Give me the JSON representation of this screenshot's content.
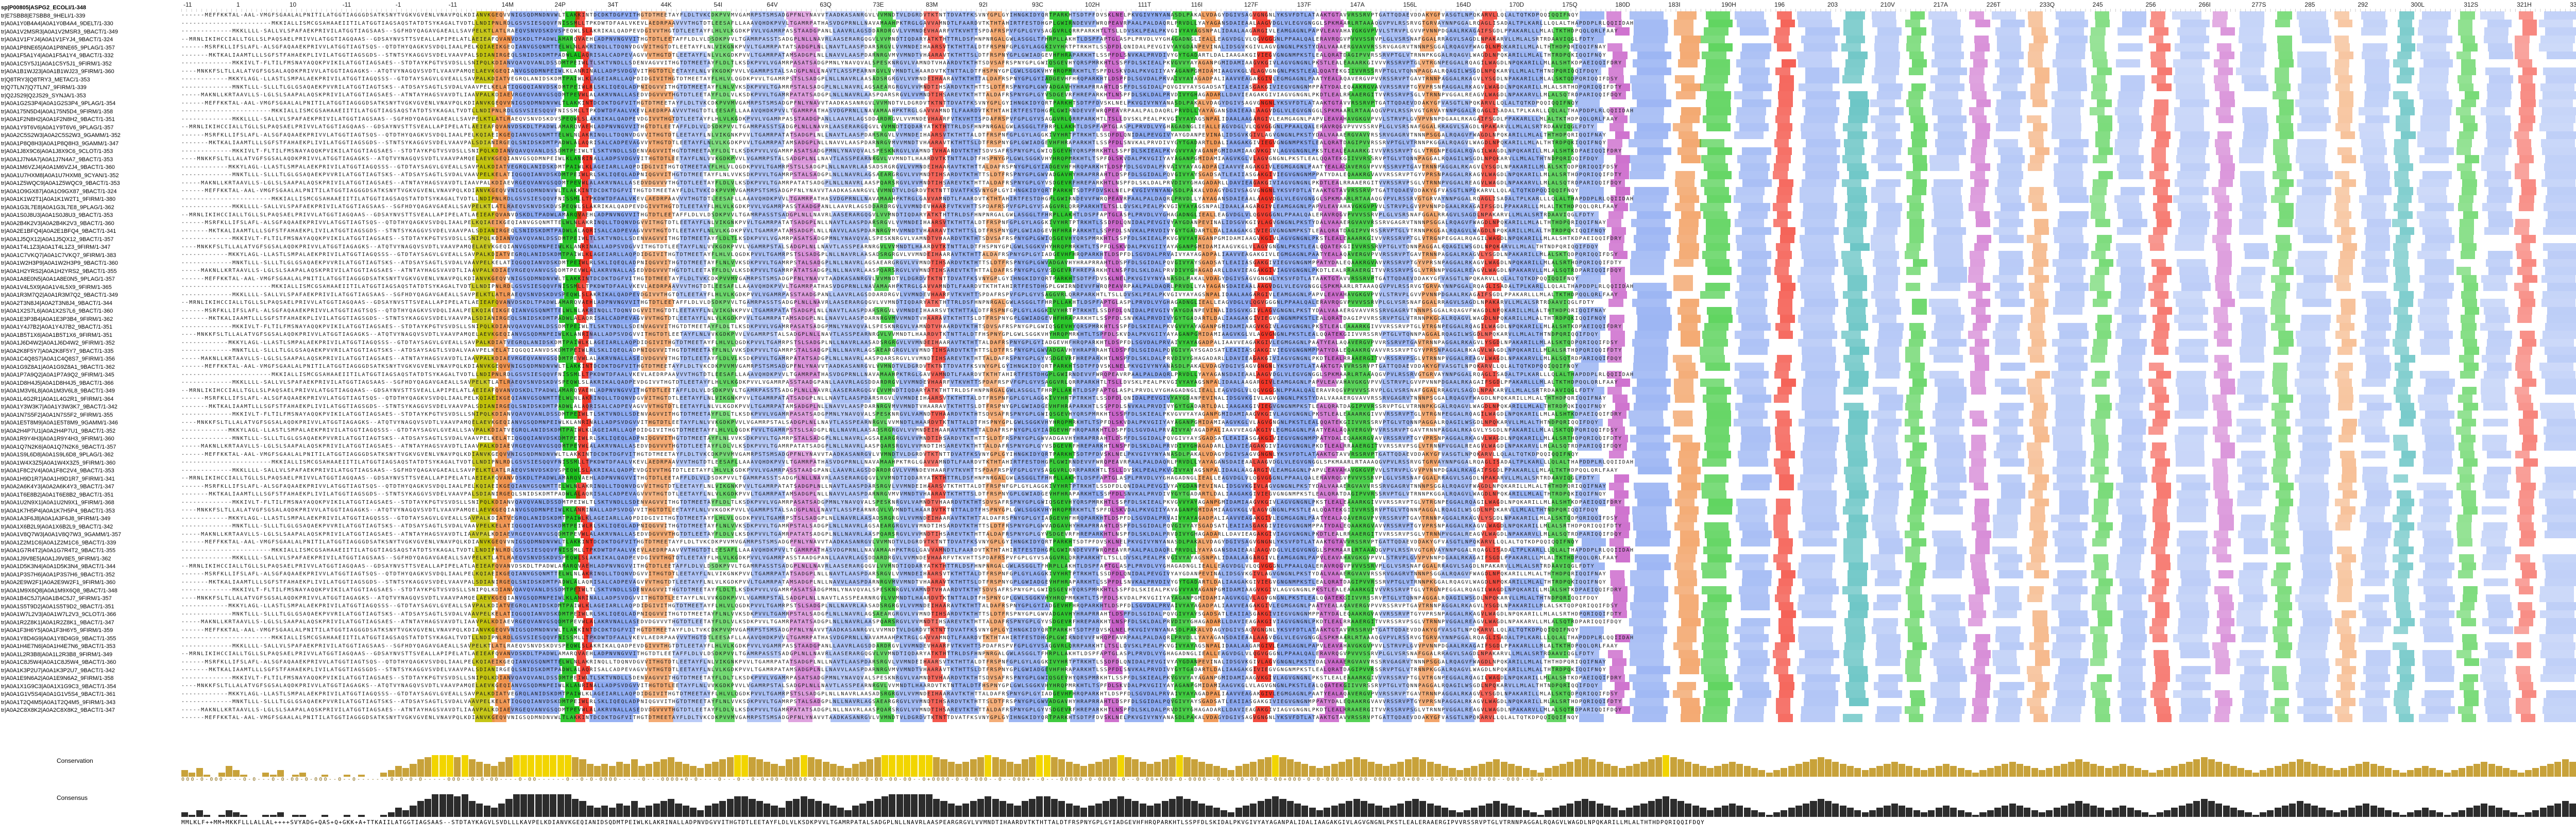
{
  "ruler": {
    "ticks": [
      "-11",
      "1",
      "10",
      "-11",
      "-1",
      "-11",
      "14M",
      "24P",
      "34T",
      "44K",
      "54I",
      "64V",
      "63Q",
      "73E",
      "83M",
      "92I",
      "93C",
      "102H",
      "111T",
      "116I",
      "127F",
      "137F",
      "147A",
      "156L",
      "164D",
      "170D",
      "175Q",
      "180D",
      "183I",
      "190H",
      "196",
      "203",
      "210V",
      "217A",
      "226T",
      "233Q",
      "245",
      "256",
      "266I",
      "277S",
      "285",
      "292",
      "300L",
      "312S",
      "321H",
      "330"
    ]
  },
  "colors": {
    "hydrophobic_blue": "#80a0f0",
    "polar_green": "#15c015",
    "glycine_orange": "#f09048",
    "proline_yellow": "#c0c000",
    "acidic_magenta": "#c048c0",
    "basic_red": "#f01505",
    "aromatic_cyan": "#15a4a4",
    "conservation_bar": "#c8a23a",
    "consensus_bar": "#2c2c2c"
  },
  "sequences": [
    {
      "name": "sp|P00805|ASPG2_ECOLI/1-348",
      "ref": true
    },
    {
      "name": "tr|E7SBB8|E7SBB8_9HELI/1-339"
    },
    {
      "name": "tr|A0A1Y0B4A4|A0A1Y0B4A4_9DELT/1-330"
    },
    {
      "name": "tr|A0A1V2MSR3|A0A1V2MSR3_9BACT/1-349"
    },
    {
      "name": "tr|A0A1V1FYJ4|A0A1V1FYJ4_9BACT/1-324"
    },
    {
      "name": "tr|A0A1P8NE65|A0A1P8NE65_9PLAG/1-357"
    },
    {
      "name": "tr|A0A1F5A1Y4|A0A1F5A1Y4_9BACT/1-332"
    },
    {
      "name": "tr|A0A1C5Y5J1|A0A1C5Y5J1_9FIRM/1-352"
    },
    {
      "name": "tr|A0A1B1WJ23|A0A1B1WJ23_9FIRM/1-360"
    },
    {
      "name": "tr|Q8TRY3|Q8TRY3_METAC/1-353"
    },
    {
      "name": "tr|Q7TLN7|Q7TLN7_9FIRM/1-339"
    },
    {
      "name": "tr|Q2JS29|Q2JS29_SYNJA/1-353"
    },
    {
      "name": "tr|A0A1G2S3P4|A0A1G2S3P4_9PLAG/1-354"
    },
    {
      "name": "tr|A0A175N5D4|A0A175N5D4_9FIRM/1-358"
    },
    {
      "name": "tr|A0A1F2N8H2|A0A1F2N8H2_9BACT/1-351"
    },
    {
      "name": "tr|A0A1Y9T6V6|A0A1Y9T6V6_9PLAG/1-357"
    },
    {
      "name": "tr|A0A2C5S2W3|A0A2C5S2W3_9GAMM/1-352"
    },
    {
      "name": "tr|A0A1P8Q8H3|A0A1P8Q8H3_9GAMM/1-347"
    },
    {
      "name": "tr|A0A1J8X9C6|A0A1J8X9C6_9CLOT/1-353"
    },
    {
      "name": "tr|A0A1J7N4A7|A0A1J7N4A7_9BACT/1-353"
    },
    {
      "name": "tr|A0A1M6VZJ4|A0A1M6VZJ4_9BACT/1-360"
    },
    {
      "name": "tr|A0A1U7HXM8|A0A1U7HXM8_9CYAN/1-352"
    },
    {
      "name": "tr|A0A1Z5WQC9|A0A1Z5WQC9_9BACT/1-353"
    },
    {
      "name": "tr|A0A1O9GX87|A0A1O9GX87_9BACT/1-324"
    },
    {
      "name": "tr|A0A1K1W2T1|A0A1K1W2T1_9FIRM/1-380"
    },
    {
      "name": "tr|A0A1G3L7E8|A0A1G3L7E8_9PLAG/1-362"
    },
    {
      "name": "tr|A0A1S0J8U3|A0A1S0J8U3_9BACT/1-353"
    },
    {
      "name": "tr|A0A2B4K2V3|A0A2B4K2V3_9BACT/1-360"
    },
    {
      "name": "tr|A0A2E1BFQ4|A0A2E1BFQ4_9BACT/1-341"
    },
    {
      "name": "tr|A0A1J5QX12|A0A1J5QX12_9BACT/1-357"
    },
    {
      "name": "tr|A0A1T4L1Z3|A0A1T4L1Z3_9FIRM/1-347"
    },
    {
      "name": "tr|A0A1C7VKQ7|A0A1C7VKQ7_9FIRM/1-383"
    },
    {
      "name": "tr|A0A1W2H3P9|A0A1W2H3P9_9BACT/1-360"
    },
    {
      "name": "tr|A0A1H2YRS2|A0A1H2YRS2_9BACT/1-355"
    },
    {
      "name": "tr|A0A1A8E0N5|A0A1A8E0N5_9PLAG/1-357"
    },
    {
      "name": "tr|A0A1V4L5X9|A0A1V4L5X9_9FIRM/1-365"
    },
    {
      "name": "tr|A0A1R3M7Q2|A0A1R3M7Q2_9BACT/1-349"
    },
    {
      "name": "tr|A0A2T3N8J4|A0A2T3N8J4_9BACT/1-344"
    },
    {
      "name": "tr|A0A1X2S7L6|A0A1X2S7L6_9BACT/1-360"
    },
    {
      "name": "tr|A0A1E3P3B4|A0A1E3P3B4_9FIRM/1-362"
    },
    {
      "name": "tr|A0A1Y4J7B2|A0A1Y4J7B2_9BACT/1-351"
    },
    {
      "name": "tr|A0A1B5T1X6|A0A1B5T1X6_9FIRM/1-351"
    },
    {
      "name": "tr|A0A1J6D4W2|A0A1J6D4W2_9FIRM/1-352"
    },
    {
      "name": "tr|A0A2K8F5Y7|A0A2K8F5Y7_9BACT/1-335"
    },
    {
      "name": "tr|A0A1C4Q8S7|A0A1C4Q8S7_9FIRM/1-356"
    },
    {
      "name": "tr|A0A1G9Z8A1|A0A1G9Z8A1_9BACT/1-362"
    },
    {
      "name": "tr|A0A1P7A9Q2|A0A1P7A9Q2_9FIRM/1-345"
    },
    {
      "name": "tr|A0A1D8H4J5|A0A1D8H4J5_9BACT/1-366"
    },
    {
      "name": "tr|A0A1M3V6L8|A0A1M3V6L8_9BACT/1-349"
    },
    {
      "name": "tr|A0A1L4G2R1|A0A1L4G2R1_9FIRM/1-364"
    },
    {
      "name": "tr|A0A1Y3W3K7|A0A1Y3W3K7_9BACT/1-342"
    },
    {
      "name": "tr|A0A1N7S5F2|A0A1N7S5F2_9FIRM/1-355"
    },
    {
      "name": "tr|A0A1E5T8M9|A0A1E5T8M9_9GAMM/1-346"
    },
    {
      "name": "tr|A0A2H4P7U1|A0A2H4P7U1_9BACT/1-352"
    },
    {
      "name": "tr|A0A1R9Y4H3|A0A1R9Y4H3_9FIRM/1-360"
    },
    {
      "name": "tr|A0A1Q7N2K6|A0A1Q7N2K6_9BACT/1-357"
    },
    {
      "name": "tr|A0A1S9L6D8|A0A1S9L6D8_9PLAG/1-362"
    },
    {
      "name": "tr|A0A1W4X3Z5|A0A1W4X3Z5_9FIRM/1-360"
    },
    {
      "name": "tr|A0A1F8C2V4|A0A1F8C2V4_9BACT/1-353"
    },
    {
      "name": "tr|A0A1H9D1R7|A0A1H9D1R7_9FIRM/1-341"
    },
    {
      "name": "tr|A0A2A6K4Y3|A0A2A6K4Y3_9BACT/1-347"
    },
    {
      "name": "tr|A0A1T6E8B2|A0A1T6E8B2_9BACT/1-351"
    },
    {
      "name": "tr|A0A1U2N9X1|A0A1U2N9X1_9FIRM/1-368"
    },
    {
      "name": "tr|A0A1K7H5P4|A0A1K7H5P4_9BACT/1-353"
    },
    {
      "name": "tr|A0A1A3F6J8|A0A1A3F6J8_9FIRM/1-349"
    },
    {
      "name": "tr|A0A1X6B2L9|A0A1X6B2L9_9BACT/1-342"
    },
    {
      "name": "tr|A0A1V8Q7W3|A0A1V8Q7W3_9GAMM/1-357"
    },
    {
      "name": "tr|A0A1Z2M1C6|A0A1Z2M1C6_9BACT/1-339"
    },
    {
      "name": "tr|A0A1G7R4T2|A0A1G7R4T2_9BACT/1-355"
    },
    {
      "name": "tr|A0A1J9V8E5|A0A1J9V8E5_9FIRM/1-362"
    },
    {
      "name": "tr|A0A1D5K3N4|A0A1D5K3N4_9BACT/1-344"
    },
    {
      "name": "tr|A0A1P3S7H6|A0A1P3S7H6_9BACT/1-352"
    },
    {
      "name": "tr|A0A2E9W2F1|A0A2E9W2F1_9FIRM/1-360"
    },
    {
      "name": "tr|A0A1M9X6Q8|A0A1M9X6Q8_9BACT/1-348"
    },
    {
      "name": "tr|A0A1B4C5J7|A0A1B4C5J7_9FIRM/1-357"
    },
    {
      "name": "tr|A0A1S5T9D2|A0A1S5T9D2_9BACT/1-351"
    },
    {
      "name": "tr|A0A1W7L2V3|A0A1W7L2V3_9CLOT/1-366"
    },
    {
      "name": "tr|A0A1R2Z8K1|A0A1R2Z8K1_9BACT/1-347"
    },
    {
      "name": "tr|A0A1F3H6Y5|A0A1F3H6Y5_9FIRM/1-359"
    },
    {
      "name": "tr|A0A1Y8D4G9|A0A1Y8D4G9_9BACT/1-355"
    },
    {
      "name": "tr|A0A1H4E7N6|A0A1H4E7N6_9BACT/1-353"
    },
    {
      "name": "tr|A0A1L2R3B8|A0A1L2R3B8_9FIRM/1-349"
    },
    {
      "name": "tr|A0A1C8J5W4|A0A1C8J5W4_9BACT/1-360"
    },
    {
      "name": "tr|A0A1K3P2U7|A0A1K3P2U7_9BACT/1-342"
    },
    {
      "name": "tr|A0A1E9N6A2|A0A1E9N6A2_9FIRM/1-358"
    },
    {
      "name": "tr|A0A1X1G9C3|A0A1X1G9C3_9BACT/1-354"
    },
    {
      "name": "tr|A0A1G1V5S4|A0A1G1V5S4_9BACT/1-361"
    },
    {
      "name": "tr|A0A1T2Q4M5|A0A1T2Q4M5_9FIRM/1-343"
    },
    {
      "name": "tr|A0A2C8X8K2|A0A2C8X8K2_9BACT/1-347"
    }
  ],
  "alignment_rows": [
    "------MEFFKKTAL-AAL-VMGFSGAALALPNITILATGGTIAGGGDSATKSNYTVGKVGVENLVNAVPQLKDIANVKGEQVVNIGSQDMNDNVWLTLAKKINTDCDKTDGFVITHGTDTMEETAYFLDLTVKCDKPVVMVGAMRPSTSMSADGPFNLYNAVVTAADKASANRGVLVVMNDTVLDGRDVTKTNTTDVATFKSVNYGPLGYIHNGKIDYQRTPARKHTSDTPFDVSKLNELPKVGIVYNYANASDLPAKALVDAGYDGIVSAGVGNGNLYKSVFDTLATAAKTGTAVVRSSRVPTGATTQDAEVDDAKYGFVASGTLNPQKARVLLQLALTQTKDPQQIQQIFNQY",
    "-----------------------MKKIALLISMCGSAHAAEIITILATGGTIAGSAQSTATDTSYKAGALTVDTLLNDIPNLRDLGSVSIESQQVFNISSMLLTPKDWTDFAALVKEVLAEDRPAAVVVTHGTDTLEESAFLLAAAVQHDKPVVLTGAMRPATHASVDGPRNLLNAVAMAAHPKTRGLGAVVAMNDTLFAARDVTKTHTAHIRTFESTDHGPLGWIRNDEVVFWRQPEAVRPAALPALDAQRLPRVDLLYAYAGANSDAIEAALAAGVDGLVLEGVGNGGLSPKMAARLRTAAAQGVPVLRSSRVGTGRVAYNNPGGALRQAGLISADALTPLKARLLLQLALTHAPDDPLRLQQIIDAH",
    "-------------MKKLLLL-SALLVLSPAFAEKPRIVILATGGTIAGSAAS--SGFHDYQAGAVGAEALLSAVPELKTLATLRAEQVSNVDSKDVSPEQWLSLAKRIKALQADPEVDGIVVTHGTDTLEETAYFLHLVLKGDKPVVLVGAMRPASSTAADGPANLLAAVRLAGSDDARDRGVLVVMNDEVHAARFVTKVHTTSPDAFRSPVFGPLGYVSAGGVRLQRRPARKHTLTSLLDVSKLPEALPKVGIVYAYAGSNPALIDAALAAGARGIVLEAMGAGNLPAPVLEAVAHAVGKGVPVVLSTRVPLGVVPVNNPDGAALRKAGAIFSGDLPPAKARLLLMLALTKTHDPQQLQRLFAAY",
    "--MRNLIKIHCCIALLTGLLSLPAQSAELPRIVVLATGGTIAGQAAS--GDSAYNVSTTSVEALLAPIPELATLAEIEAFQVANVDSKDLTPADWLAMARQVAEHLADPNVNGVVITHGTDTLEETAFFLDLVLDSDKPVVLTGAMRPASSTSADGPLNLLNAVRLAASERARGQGVLVVMNDTIQDARYATKTHTTRLDSFHNPNRGALGWLASGGLTFHRPLLAKHTLDSPFAPTGLASPLPRVDLVYGHAGADNGLIEALLEAGVDGLVLQGVGGGNLPPAALQALERAVRQGVPVVVSSRVPLGLVSRSNAFGGALRRAGVLSAGDLNPAKARVLLMLALSRTRDAAVIQGLFDTY",
    "------MSRFKLLIFSLAFL-ALSGFAQAAEKPRIVVLATGGTIAGTSQS--QTDTHYQAGKVSVDQLIAALPELKQIAEIKGEQIANVGSQNMTTELWLNLAKRINQLLTDQNVDGVVITHGTDTLEETAYFLNLVIKGNKPVVLTGAMRPATATSADGPLNLLNAVTLAASPDARSRGVLVVMNDEIHAARSVTKTHTTALDTFRSPNFGPLGYLAGGKIVYHRTPTRKHTLSSDFDLQNIDALPEVGIVYAYGDANPEVINALIDSGVKGIVLAGVGNGNLPKSTYDALVAAAERGVAVVRSSRVGAGRVTNNNPSGGALRQAGVFWAGDLNPQKARILLMLALTHTHDPQRIQQIFNAY",
    "-------MKTKALIAAMTLLLSGFSTFAHAEKPLIVILATGGTIAGSGDS--STNTSYKAGGVSVDELVAAVPALSDIANIRGEQLSNIDSKDMTPADWLALAQRISALCADPEVAGVVVTHGTDTLEETAYFLNLVLKGDKPVVLTGAMRPATAMSADGPLNLLNAVVLAASPDARNRGVMVVMNDTVHAARAVTKTHTTSLDTFRSPNYGPLGWIADGEVHFHRAPARKHTLSSPFDLSNVKALPRVDIVYGYTGADARTLDALIAAGAKGIVIEGVGNGNMPKSTLEALQRATDAGIPVVRSSRVPTGLVTRNNPKGGALRQAGVLWAGDLNPQKARILLMLALTHTRDPQKIQQIFNQY",
    "-------------MKKIVLT-FLTILFMSNAYAQQKPVIKILATGGTIAGSAES--STDTAYKPGTVSVDSLLSNIPQLKDIANVQAVQVANLDSSDMTPEIWLTLSKTVNDLLSDENVAGVVITHGTDTMEETAYFLDLTLKSDKPVVLVGAMRPASATSADGPMNLYNAVQVALSPESKNRGVLVAMNDTVHAARDVTKTHTSDVSAFRSPNYGPLGWIQSGEVHYQRSPMRKHTLSSPFDLSKIEALPKVGVVYAYAGANPGMIDAMIAAGVKGIVLAGVGNGNLPKSTLEALEAAARKGIVVVRSSRVPTGLVTRGNPEGGALRQAGILWAGDLNPQKARILLMLALSHTKDPAEIQQIFDRY",
    "----MNKKFSLTLLALATVGFSGSALAQDKPRIVVLATGGTIAGAGKS--ATQTVYNAGQVSVDTLVAAVPAMQELAEVKGEQIANVGSQDMNPEIWLKLANRINALLADPSVDGVVITHGTDTLEETAYFLNLVVKGDKPVVLVGAMRPSTALSADGPLNLLNAVTLASSPEARNRGVLVVMNDTLHAARDVTKTNTTALDTFHSPNYGPLGWLSGGKVHYHRQPMRKHTLTSPFDLSKVDALPKVGIIYAYAGANPGMIDAMIAAGVKGLVLAGVGNGNLPKSTLEALQQATEKGIIVVRSSRVPTGLVTQNNPAGGALRQAGILWSGDLNPQKARVLLMLALTHTNDPQRIQQIFDQY",
    "------------MKKYLAGL-LLASTLSMPALAEKPRIVILATGGTIAGQSSS--GTDTAYSAGVLGVEALLSAVPALKDIATVEGRQLANIDSKDMTPAIWLKLAGEIARLLAQPDIDGIVITHGTDTMEETAYFLHLVLQGDKPVVLTGAMRPSTSLSADGPLNLLNAVRLAASADSRGRGVLVVMNDEIHAARAVTKTHTTALDAFRSPNYGPLGYIADGEVHFHRQPARKHTLDSPFDLSGVDALPRVAIVYAYAGADPALIAAVVEAGAKGIVLEGMGAGNLPAATYEALAQAVERGVPVVRSSRVPTGAVTRNNPAGGALRKAGVLYSGDLNPAKARILLMLALSKTQDPQRIQQIFDSY",
    "-------------MNKTLLL-SLLLTLGLGSAQAEKPVVRILATGGTIAGTSKS--ATDSAYSAGTLSVDALVAAVPELKELATIQGQQIANVDSKDMTPEIWLRLSKLIQEQLADPNIQGVVITHGTDTMEETAYFLNLVVKSDKPVVLTGAMRPSTALSADGPLNLLNAVRLAGSAEARGRGVLVVMNDTIHSARDVTKTHTTSLDTFRSPNYGPLGWVADGAVHYHRAPRRAHTLDSPFDLSGIDALPQVGIVYAYSGADSATLEAIIASGAKGIVIEGVGNGNMPPATYDALEQAAKRGVAVVRSSRVPTGYVPRSNPAGGALRKAGVLWAGDLNPQKARILLMLALSRTHDPQRIQQIFDTY",
    "-----MAKNLLKRTAAVLLS-LGLSLSAAPALAQSKPRIVILATGGTIAGSAES--ATNTAYHAGSVAVDTLIAAVPALKDIAEVRGEQVANVGSQDMTPEVWLALAKRVNALLASEDVDGVVVTHGTDTLEETAYFLDLVLKSDKPVVLTGAMRPATATSADGPLNLLNAVRLAASPQARSRGVLVVMNDTIHSAREVTKTHTTALDAFRSPNYGPLGYVSDGEVRFHREPARKHTLNSPFDLSKLDALPRVDIVYGHAGADARLLDAVIEAGAKGIVIAGVGNGNLPKDTLEALRRAAERGITVVRSSRVPSGLVTRNNPVGGALREAGVLWAGDLNPAKARVLLMLALSQTRDPARIQQIFDQY"
  ],
  "alignment_styles": {
    "colored_columns_note": "Clustal colour scheme"
  },
  "tracks": {
    "conservation_label": "Conservation",
    "consensus_label": "Consensus",
    "conservation_scores": "000-0-000----0-0---0-0-00-0-000--0--0-------0-0-0-0-----000--0-0-00----0-00------0--0-0-0000-----0---0000+0-0----0---0--0-0+00-00000-0-0-00+000-0-00-00-00--0+0000-0-0-000--0--000+--0---00000-0-0000-0--0-00+000-0-0000--0--0-0-00-0-00+000-0-0-000--0-00-0000-00+00--0-0-00-0000-00--000--0-0--",
    "consensus_sequence": "MMLKLF++MM+MKKFLLLALLAL++++SVYADG+QAS+Q+GKK+A+TTKAIILATGGTIAGSAAS--STDTAYKAGVLSVDLLLKAVPELKDIANVKGEQIANIDSQDMTPEIWLKLAKRINALLADPNVDGVVITHGTDTLEETAYFLDLVLKSDKPVVLTGAMRPATALSADGPLNLLNAVRLAASPEARGRGVLVVMNDTIHAARDVTKTHTTALDTFRSPNYGPLGYIADGEVHFHRQPARKHTLSSPFDLSKIDALPKVGIVYAYAGANPALIDALIAAGAKGIVLAGVGNGNLPKSTLEALERAAERGIPVVRSSRVPTGLVTRNNPAGGALRQAGVLWAGDLNPQKARILLMLALTHTHDPQRIQQIFDQY"
  },
  "conservation_profile": [
    3,
    2,
    4,
    1,
    0,
    2,
    5,
    3,
    1,
    0,
    0,
    2,
    1,
    3,
    0,
    1,
    2,
    0,
    0,
    1,
    0,
    0,
    1,
    0,
    1,
    0,
    0,
    2,
    3,
    5,
    4,
    6,
    8,
    9,
    10,
    10,
    10,
    9,
    10,
    8,
    7,
    6,
    5,
    7,
    9,
    10,
    10,
    10,
    10,
    10,
    10,
    10,
    10,
    9,
    8,
    6,
    5,
    6,
    5,
    7,
    6,
    8,
    5,
    6,
    7,
    8,
    9,
    7,
    6,
    5,
    4,
    6,
    7,
    8,
    9,
    10,
    10,
    9,
    8,
    7,
    6,
    5,
    8,
    9,
    10,
    9,
    8,
    7,
    6,
    5,
    4,
    6,
    7,
    8,
    9,
    10,
    10,
    10,
    10,
    10,
    10,
    10,
    9,
    8,
    7,
    6,
    7,
    8,
    9,
    10,
    9,
    8,
    7,
    6,
    8,
    9,
    10,
    10,
    9,
    8,
    7,
    6,
    5,
    6,
    7,
    8,
    9,
    10,
    9,
    8,
    7,
    6,
    7,
    8,
    9,
    10,
    9,
    8,
    7,
    6,
    5,
    4,
    3,
    5,
    6,
    7,
    8,
    9,
    10,
    9,
    8,
    7,
    6,
    5,
    4,
    5,
    6,
    7,
    8,
    9,
    8,
    7,
    6,
    5,
    6,
    7,
    8,
    9,
    8,
    7,
    6,
    5,
    4,
    3,
    4,
    5,
    6,
    7,
    8,
    7,
    6,
    5,
    4,
    3,
    2,
    4,
    5,
    6,
    7,
    8,
    9,
    8,
    7,
    6,
    5,
    4,
    5,
    6,
    7,
    8,
    9,
    10,
    9,
    8,
    7,
    6,
    5,
    4,
    5,
    6,
    7,
    6,
    5,
    4,
    3,
    2,
    3,
    4,
    5,
    6,
    7,
    8,
    9,
    8,
    7,
    6,
    5,
    4,
    3,
    4,
    5,
    6,
    7,
    6,
    5,
    4,
    3,
    4,
    5,
    6,
    5,
    4,
    3,
    2,
    3,
    4,
    5,
    6,
    7,
    6,
    5,
    4,
    3,
    4,
    5,
    6,
    7,
    8,
    7,
    6,
    5,
    4,
    5,
    6,
    5,
    4,
    3,
    2,
    3,
    4,
    5,
    6,
    7,
    8,
    9,
    8,
    7,
    6,
    5,
    4,
    3,
    2,
    3,
    4,
    5,
    6,
    7,
    8,
    7,
    6,
    5,
    4,
    3,
    4,
    5,
    6,
    7,
    6,
    5,
    4,
    3,
    2,
    3,
    4,
    5,
    4,
    3,
    2,
    3,
    4,
    5,
    6,
    7,
    6,
    5,
    4,
    3,
    2,
    3,
    4,
    5,
    6,
    7,
    8,
    7,
    6,
    5,
    4,
    3,
    2,
    1
  ],
  "consensus_profile": [
    2,
    1,
    3,
    1,
    0,
    1,
    3,
    2,
    1,
    0,
    0,
    1,
    1,
    2,
    0,
    1,
    1,
    0,
    0,
    1,
    0,
    0,
    1,
    0,
    1,
    0,
    0,
    1,
    2,
    4,
    3,
    5,
    7,
    8,
    10,
    10,
    10,
    9,
    10,
    7,
    6,
    5,
    4,
    6,
    8,
    10,
    10,
    10,
    10,
    10,
    10,
    10,
    10,
    8,
    7,
    5,
    4,
    5,
    4,
    6,
    5,
    7,
    4,
    5,
    6,
    7,
    8,
    6,
    5,
    4,
    3,
    5,
    6,
    7,
    8,
    9,
    9,
    8,
    7,
    6,
    5,
    4,
    7,
    8,
    9,
    8,
    7,
    6,
    5,
    4,
    3,
    5,
    6,
    7,
    8,
    9,
    10,
    10,
    10,
    10,
    10,
    10,
    8,
    7,
    6,
    5,
    6,
    7,
    8,
    9,
    8,
    7,
    6,
    5,
    7,
    8,
    9,
    9,
    8,
    7,
    6,
    5,
    4,
    5,
    6,
    7,
    8,
    9,
    8,
    7,
    6,
    5,
    6,
    7,
    8,
    9,
    8,
    7,
    6,
    5,
    4,
    3,
    2,
    4,
    5,
    6,
    7,
    8,
    9,
    8,
    7,
    6,
    5,
    4,
    3,
    4,
    5,
    6,
    7,
    8,
    7,
    6,
    5,
    4,
    5,
    6,
    7,
    8,
    7,
    6,
    5,
    4,
    3,
    2,
    3,
    4,
    5,
    6,
    7,
    6,
    5,
    4,
    3,
    2,
    1,
    3,
    4,
    5,
    6,
    7,
    8,
    7,
    6,
    5,
    4,
    3,
    4,
    5,
    6,
    7,
    8,
    9,
    8,
    7,
    6,
    5,
    4,
    3,
    4,
    5,
    6,
    5,
    4,
    3,
    2,
    1,
    2,
    3,
    4,
    5,
    6,
    7,
    8,
    7,
    6,
    5,
    4,
    3,
    2,
    3,
    4,
    5,
    6,
    5,
    4,
    3,
    2,
    3,
    4,
    5,
    4,
    3,
    2,
    1,
    2,
    3,
    4,
    5,
    6,
    5,
    4,
    3,
    2,
    3,
    4,
    5,
    6,
    7,
    6,
    5,
    4,
    3,
    4,
    5,
    4,
    3,
    2,
    1,
    2,
    3,
    4,
    5,
    6,
    7,
    8,
    7,
    6,
    5,
    4,
    3,
    2,
    1,
    2,
    3,
    4,
    5,
    6,
    7,
    6,
    5,
    4,
    3,
    2,
    3,
    4,
    5,
    6,
    5,
    4,
    3,
    2,
    1,
    2,
    3,
    4,
    3,
    2,
    1,
    2,
    3,
    4,
    5,
    6,
    5,
    4,
    3,
    2,
    1,
    2,
    3,
    4,
    5,
    6,
    7,
    6,
    5,
    4,
    3,
    2,
    1,
    0
  ]
}
